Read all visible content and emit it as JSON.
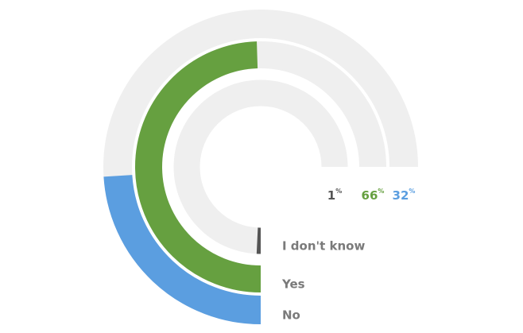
{
  "chart_data": {
    "type": "radial_bar",
    "categories": [
      "I don't know",
      "Yes",
      "No"
    ],
    "values": [
      1,
      66,
      32
    ],
    "colors": [
      "#555555",
      "#66a040",
      "#5b9ee0"
    ],
    "value_suffix": "%",
    "ylim": [
      0,
      100
    ]
  }
}
